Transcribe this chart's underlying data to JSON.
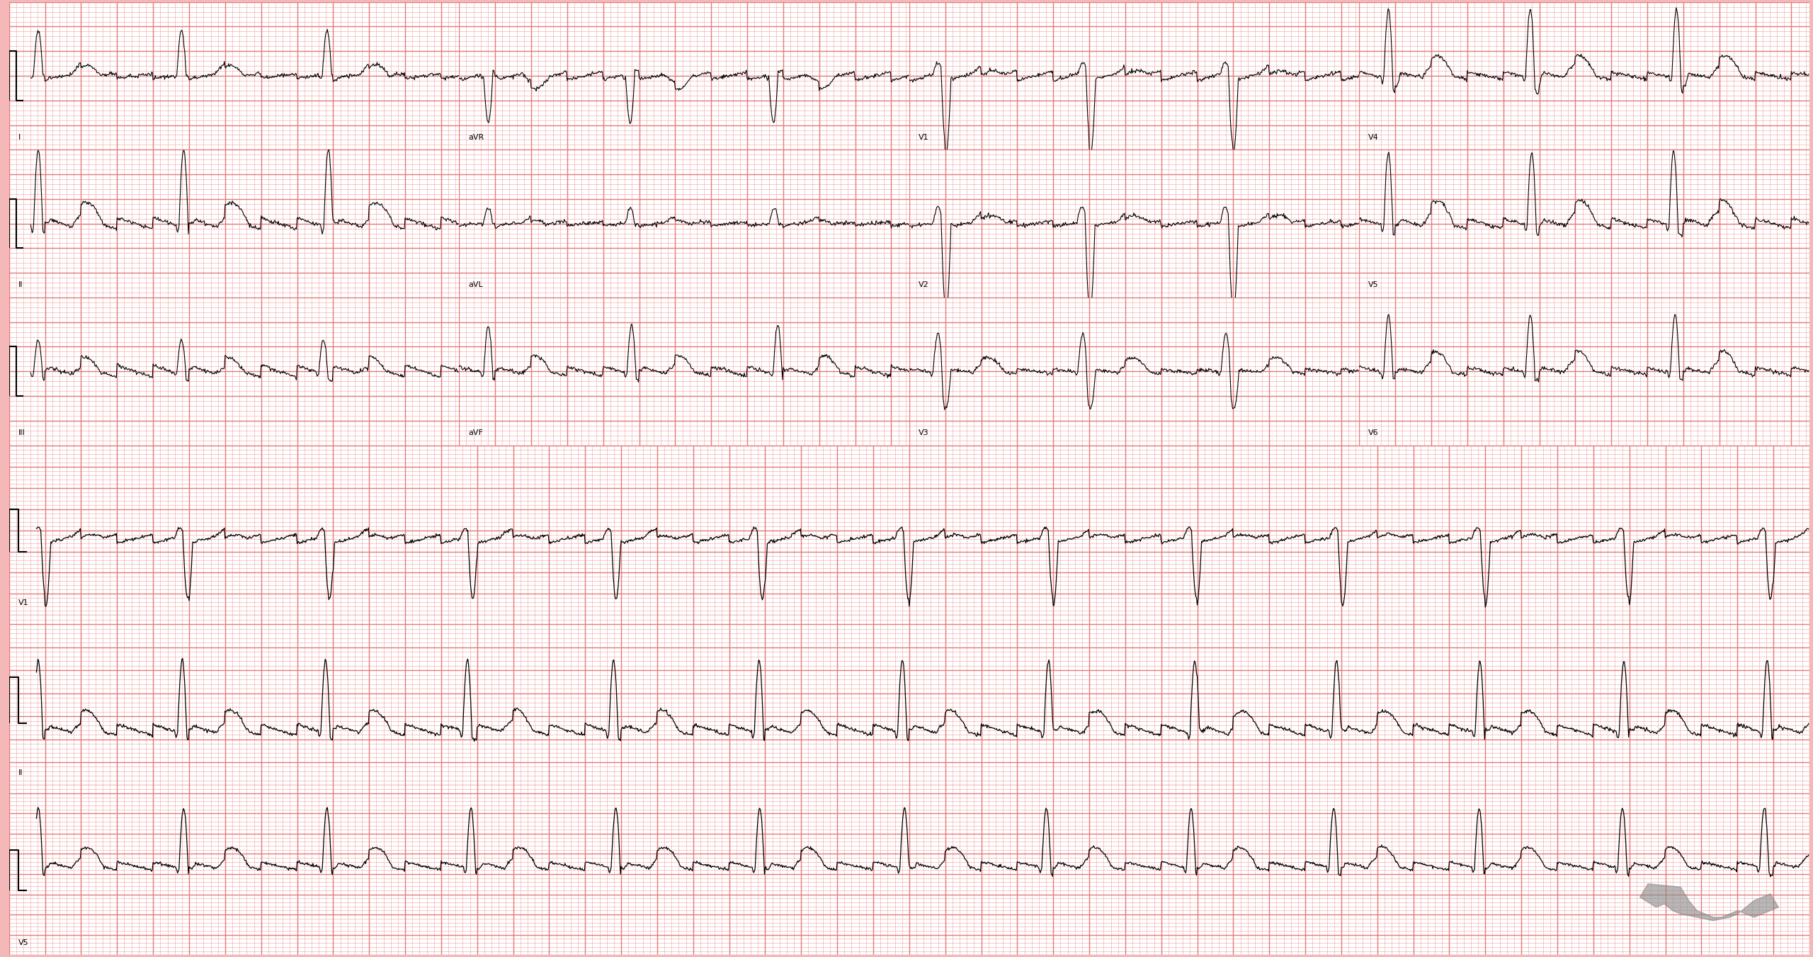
{
  "background_color": "#F5B8B8",
  "grid_major_color": "#E87878",
  "grid_minor_color": "#F0A0A0",
  "cell_color": "#FFFFFF",
  "ecg_color": "#000000",
  "figsize": [
    25.6,
    13.51
  ],
  "dpi": 100,
  "lead_rows": [
    [
      "I",
      "aVR",
      "V1",
      "V4"
    ],
    [
      "II",
      "aVL",
      "V2",
      "V5"
    ],
    [
      "III",
      "aVF",
      "V3",
      "V6"
    ]
  ],
  "rhythm_leads": [
    "V1",
    "II",
    "V5"
  ],
  "sample_rate": 250,
  "major_grid_mm": 5,
  "minor_grid_mm": 1,
  "mm_per_mv": 10,
  "mm_per_sec": 25
}
